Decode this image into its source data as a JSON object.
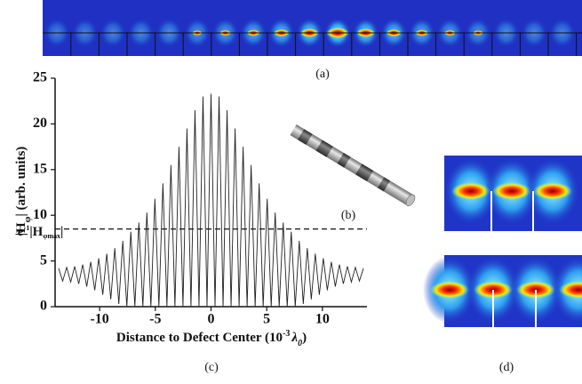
{
  "panel_labels": {
    "a": "(a)",
    "b": "(b)",
    "c": "(c)",
    "d": "(d)"
  },
  "chart_data": {
    "type": "line",
    "y_label": {
      "main": "|H",
      "sub": "φ",
      "rest": "| (arb. units)"
    },
    "x_label": {
      "main": "Distance to Defect Center (10",
      "sup": "-3",
      "mid": "λ",
      "sub": "0",
      "end": ")"
    },
    "threshold": 8.5,
    "threshold_label": {
      "e": "e",
      "sup": "-1",
      "main": "|H",
      "sub": "φmax",
      "end": "|"
    },
    "color": "#222222",
    "x": [
      -13.68,
      -13.32,
      -12.96,
      -12.6,
      -12.24,
      -11.88,
      -11.52,
      -11.16,
      -10.8,
      -10.44,
      -10.08,
      -9.72,
      -9.36,
      -9.0,
      -8.64,
      -8.28,
      -7.92,
      -7.56,
      -7.2,
      -6.84,
      -6.48,
      -6.12,
      -5.76,
      -5.4,
      -5.04,
      -4.68,
      -4.32,
      -3.96,
      -3.6,
      -3.24,
      -2.88,
      -2.52,
      -2.16,
      -1.8,
      -1.44,
      -1.08,
      -0.72,
      -0.36,
      0,
      0.36,
      0.72,
      1.08,
      1.44,
      1.8,
      2.16,
      2.52,
      2.88,
      3.24,
      3.6,
      3.96,
      4.32,
      4.68,
      5.04,
      5.4,
      5.76,
      6.12,
      6.48,
      6.84,
      7.2,
      7.56,
      7.92,
      8.28,
      8.64,
      9.0,
      9.36,
      9.72,
      10.08,
      10.44,
      10.8,
      11.16,
      11.52,
      11.88,
      12.24,
      12.6,
      12.96,
      13.32,
      13.68
    ],
    "values": [
      4.2,
      2.8,
      4.3,
      2.7,
      4.4,
      2.5,
      4.6,
      2.2,
      4.9,
      1.8,
      5.3,
      1.3,
      5.8,
      0.8,
      6.4,
      0.3,
      7.2,
      0,
      8.2,
      0,
      9.2,
      0,
      10.3,
      0,
      11.8,
      0,
      13.5,
      0,
      15.5,
      0,
      17.5,
      0,
      19.5,
      0,
      21.5,
      0,
      23.0,
      0,
      23.3,
      0,
      23.0,
      0,
      21.5,
      0,
      19.5,
      0,
      17.5,
      0,
      15.5,
      0,
      13.5,
      0,
      11.8,
      0,
      10.3,
      0,
      9.2,
      0,
      8.2,
      0,
      7.2,
      0.3,
      6.4,
      0.8,
      5.8,
      1.3,
      5.3,
      1.8,
      4.9,
      2.2,
      4.6,
      2.5,
      4.4,
      2.7,
      4.3,
      2.8,
      4.2
    ],
    "xlim": [
      -14,
      14
    ],
    "ylim": [
      0,
      25
    ],
    "xticks": [
      -10,
      -5,
      0,
      5,
      10
    ],
    "yticks": [
      0,
      5,
      10,
      15,
      20,
      25
    ]
  }
}
